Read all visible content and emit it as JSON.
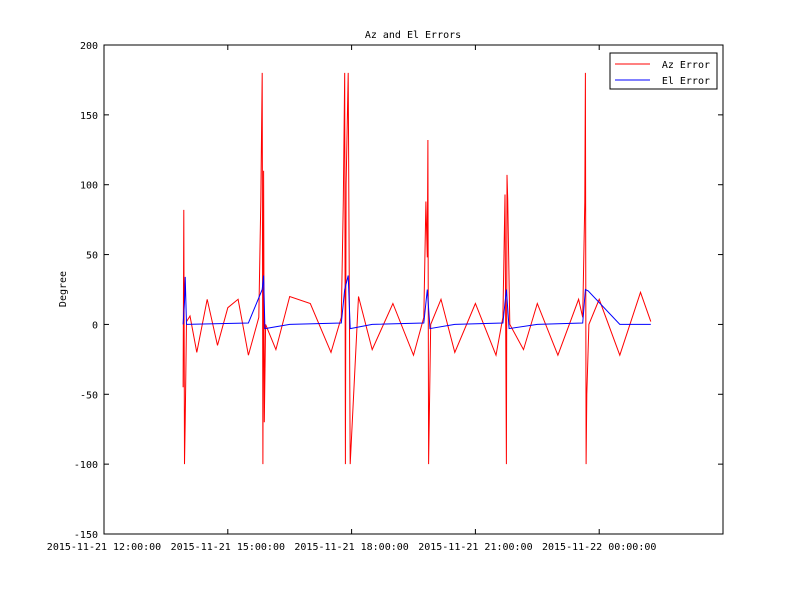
{
  "chart_data": {
    "type": "line",
    "title": "Az and El Errors",
    "xlabel": "",
    "ylabel": "Degree",
    "xlim": [
      "2015-11-21 12:00:00",
      "2015-11-22 03:00:00"
    ],
    "ylim": [
      -150,
      200
    ],
    "x_ticks": [
      "2015-11-21 12:00:00",
      "2015-11-21 15:00:00",
      "2015-11-21 18:00:00",
      "2015-11-21 21:00:00",
      "2015-11-22 00:00:00"
    ],
    "y_ticks": [
      -150,
      -100,
      -50,
      0,
      50,
      100,
      150,
      200
    ],
    "grid": false,
    "legend": "top-right",
    "colors": {
      "az": "#ff0000",
      "el": "#0000ff"
    },
    "series": [
      {
        "name": "Az Error",
        "x": [
          "2015-11-21 13:55:00",
          "2015-11-21 13:56:00",
          "2015-11-21 13:57:00",
          "2015-11-21 13:58:00",
          "2015-11-21 14:00:00",
          "2015-11-21 14:05:00",
          "2015-11-21 14:15:00",
          "2015-11-21 14:30:00",
          "2015-11-21 14:45:00",
          "2015-11-21 15:00:00",
          "2015-11-21 15:15:00",
          "2015-11-21 15:30:00",
          "2015-11-21 15:45:00",
          "2015-11-21 15:48:00",
          "2015-11-21 15:50:00",
          "2015-11-21 15:51:00",
          "2015-11-21 15:52:00",
          "2015-11-21 15:53:00",
          "2015-11-21 15:55:00",
          "2015-11-21 16:10:00",
          "2015-11-21 16:30:00",
          "2015-11-21 17:00:00",
          "2015-11-21 17:30:00",
          "2015-11-21 17:45:00",
          "2015-11-21 17:48:00",
          "2015-11-21 17:50:00",
          "2015-11-21 17:51:00",
          "2015-11-21 17:52:00",
          "2015-11-21 17:55:00",
          "2015-11-21 17:58:00",
          "2015-11-21 18:10:00",
          "2015-11-21 18:30:00",
          "2015-11-21 19:00:00",
          "2015-11-21 19:30:00",
          "2015-11-21 19:45:00",
          "2015-11-21 19:48:00",
          "2015-11-21 19:50:00",
          "2015-11-21 19:51:00",
          "2015-11-21 19:52:00",
          "2015-11-21 19:55:00",
          "2015-11-21 20:10:00",
          "2015-11-21 20:30:00",
          "2015-11-21 21:00:00",
          "2015-11-21 21:30:00",
          "2015-11-21 21:40:00",
          "2015-11-21 21:43:00",
          "2015-11-21 21:45:00",
          "2015-11-21 21:46:00",
          "2015-11-21 21:47:00",
          "2015-11-21 21:50:00",
          "2015-11-21 22:10:00",
          "2015-11-21 22:30:00",
          "2015-11-21 23:00:00",
          "2015-11-21 23:30:00",
          "2015-11-21 23:36:00",
          "2015-11-21 23:39:00",
          "2015-11-21 23:40:00",
          "2015-11-21 23:41:00",
          "2015-11-21 23:42:00",
          "2015-11-21 23:45:00",
          "2015-11-22 00:00:00",
          "2015-11-22 00:30:00",
          "2015-11-22 01:00:00",
          "2015-11-22 01:15:00"
        ],
        "values": [
          -45,
          82,
          -100,
          -70,
          2,
          6,
          -20,
          18,
          -15,
          12,
          18,
          -22,
          5,
          88,
          180,
          -100,
          110,
          -70,
          0,
          -18,
          20,
          15,
          -20,
          5,
          88,
          180,
          -100,
          100,
          180,
          -100,
          20,
          -18,
          15,
          -22,
          5,
          88,
          48,
          132,
          -100,
          0,
          18,
          -20,
          15,
          -22,
          5,
          93,
          -100,
          107,
          90,
          0,
          -18,
          15,
          -22,
          18,
          5,
          88,
          180,
          -100,
          -50,
          0,
          18,
          -22,
          23,
          2
        ]
      },
      {
        "name": "El Error",
        "x": [
          "2015-11-21 13:55:00",
          "2015-11-21 13:57:00",
          "2015-11-21 13:58:00",
          "2015-11-21 14:00:00",
          "2015-11-21 15:30:00",
          "2015-11-21 15:50:00",
          "2015-11-21 15:52:00",
          "2015-11-21 15:54:00",
          "2015-11-21 16:30:00",
          "2015-11-21 17:45:00",
          "2015-11-21 17:50:00",
          "2015-11-21 17:55:00",
          "2015-11-21 17:58:00",
          "2015-11-21 18:30:00",
          "2015-11-21 19:45:00",
          "2015-11-21 19:50:00",
          "2015-11-21 19:54:00",
          "2015-11-21 20:30:00",
          "2015-11-21 21:40:00",
          "2015-11-21 21:45:00",
          "2015-11-21 21:49:00",
          "2015-11-21 22:30:00",
          "2015-11-21 23:36:00",
          "2015-11-21 23:40:00",
          "2015-11-21 23:44:00",
          "2015-11-22 00:30:00",
          "2015-11-22 01:15:00"
        ],
        "values": [
          0,
          16,
          34,
          0,
          1,
          25,
          35,
          -3,
          0,
          1,
          25,
          35,
          -3,
          0,
          1,
          25,
          -3,
          0,
          1,
          25,
          -3,
          0,
          1,
          25,
          24,
          0,
          0
        ]
      }
    ]
  }
}
